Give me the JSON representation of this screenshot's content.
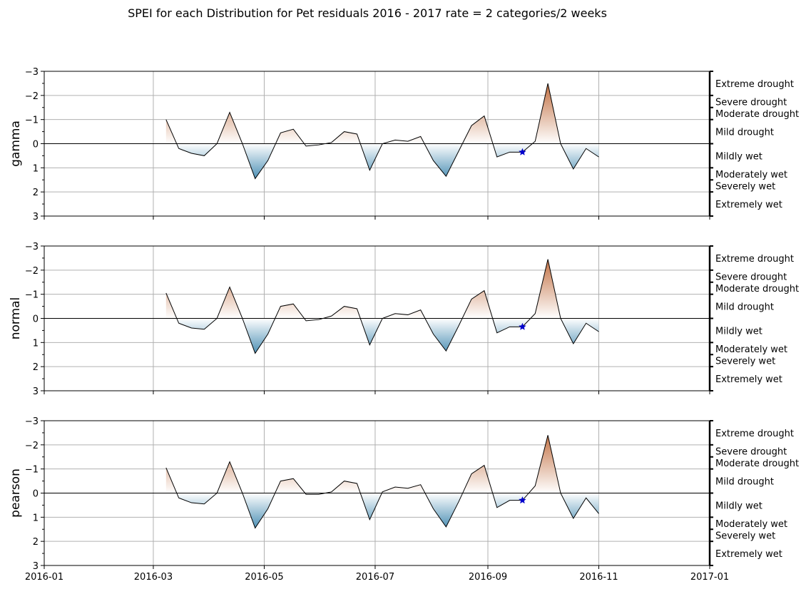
{
  "chart_data": {
    "type": "area",
    "title": "SPEI for each Distribution for Pet residuals 2016 - 2017 rate = 2 categories/2 weeks",
    "xlim": [
      "2016-01-01",
      "2017-01-01"
    ],
    "x_tick_labels": [
      "2016-01",
      "2016-03",
      "2016-05",
      "2016-07",
      "2016-09",
      "2016-11",
      "2017-01"
    ],
    "x_ticks": [
      "2016-01-01",
      "2016-03-01",
      "2016-05-01",
      "2016-07-01",
      "2016-09-01",
      "2016-11-01",
      "2017-01-01"
    ],
    "ylim": [
      3,
      -3
    ],
    "y_ticks": [
      -3,
      -2,
      -1,
      0,
      1,
      2,
      3
    ],
    "y_tick_labels": [
      "−3",
      "−2",
      "−1",
      "0",
      "1",
      "2",
      "3"
    ],
    "y_inverted": true,
    "grid": true,
    "categories": [
      {
        "label": "Extreme drought",
        "from": -3,
        "to": -2
      },
      {
        "label": "Severe drought",
        "from": -2,
        "to": -1.5
      },
      {
        "label": "Moderate drought",
        "from": -1.5,
        "to": -1
      },
      {
        "label": "Mild drought",
        "from": -1,
        "to": 0
      },
      {
        "label": "Mildly wet",
        "from": 0,
        "to": 1
      },
      {
        "label": "Moderately wet",
        "from": 1,
        "to": 1.5
      },
      {
        "label": "Severely wet",
        "from": 1.5,
        "to": 2
      },
      {
        "label": "Extremely wet",
        "from": 2,
        "to": 3
      }
    ],
    "x": [
      "2016-03-08",
      "2016-03-15",
      "2016-03-22",
      "2016-03-29",
      "2016-04-05",
      "2016-04-12",
      "2016-04-19",
      "2016-04-26",
      "2016-05-03",
      "2016-05-10",
      "2016-05-17",
      "2016-05-24",
      "2016-05-31",
      "2016-06-07",
      "2016-06-14",
      "2016-06-21",
      "2016-06-28",
      "2016-07-05",
      "2016-07-12",
      "2016-07-19",
      "2016-07-26",
      "2016-08-02",
      "2016-08-09",
      "2016-08-16",
      "2016-08-23",
      "2016-08-30",
      "2016-09-06",
      "2016-09-13",
      "2016-09-20",
      "2016-09-27",
      "2016-10-04",
      "2016-10-11",
      "2016-10-18",
      "2016-10-25",
      "2016-11-01"
    ],
    "series": [
      {
        "name": "gamma",
        "values": [
          -1.0,
          0.2,
          0.4,
          0.5,
          0.0,
          -1.3,
          0.0,
          1.45,
          0.7,
          -0.45,
          -0.6,
          0.1,
          0.05,
          -0.05,
          -0.5,
          -0.4,
          1.1,
          0.0,
          -0.15,
          -0.1,
          -0.3,
          0.7,
          1.35,
          0.3,
          -0.75,
          -1.15,
          0.55,
          0.35,
          0.35,
          -0.1,
          -2.5,
          0.0,
          1.05,
          0.2,
          0.55
        ]
      },
      {
        "name": "normal",
        "values": [
          -1.05,
          0.2,
          0.4,
          0.45,
          0.0,
          -1.3,
          0.0,
          1.45,
          0.65,
          -0.5,
          -0.6,
          0.1,
          0.05,
          -0.1,
          -0.5,
          -0.4,
          1.1,
          0.0,
          -0.2,
          -0.15,
          -0.35,
          0.65,
          1.35,
          0.3,
          -0.8,
          -1.15,
          0.6,
          0.35,
          0.35,
          -0.2,
          -2.45,
          0.0,
          1.05,
          0.2,
          0.55
        ]
      },
      {
        "name": "pearson",
        "values": [
          -1.05,
          0.2,
          0.4,
          0.45,
          0.0,
          -1.3,
          0.0,
          1.45,
          0.65,
          -0.5,
          -0.6,
          0.05,
          0.05,
          -0.05,
          -0.5,
          -0.4,
          1.1,
          -0.05,
          -0.25,
          -0.2,
          -0.35,
          0.65,
          1.4,
          0.35,
          -0.8,
          -1.15,
          0.6,
          0.3,
          0.3,
          -0.3,
          -2.4,
          0.0,
          1.05,
          0.2,
          0.85
        ]
      }
    ],
    "marker": {
      "x": "2016-09-20",
      "values": [
        0.35,
        0.35,
        0.3
      ],
      "color": "#0000cc"
    },
    "colors": {
      "drought": "#b5521b",
      "wet": "#3a84ad",
      "line": "#000000",
      "grid": "#b0b0b0"
    }
  }
}
